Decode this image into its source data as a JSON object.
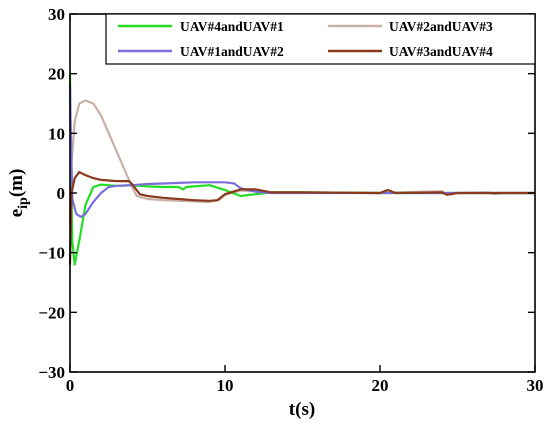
{
  "chart_data": {
    "type": "line",
    "xlabel": "t(s)",
    "ylabel_main": "e",
    "ylabel_sub": "ip",
    "ylabel_unit": "(m)",
    "xlim": [
      0,
      30
    ],
    "ylim": [
      -30,
      30
    ],
    "xticks": [
      "0",
      "10",
      "20",
      "30"
    ],
    "yticks": [
      "30",
      "20",
      "10",
      "0",
      "−10",
      "−20",
      "−30"
    ],
    "xtick_values": [
      0,
      10,
      20,
      30
    ],
    "ytick_values": [
      30,
      20,
      10,
      0,
      -10,
      -20,
      -30
    ],
    "grid": false,
    "legend_placement": "top-right",
    "series": [
      {
        "name": "UAV#4andUAV#1",
        "color": "#22dd22",
        "points": [
          [
            0,
            20
          ],
          [
            0.05,
            5
          ],
          [
            0.15,
            -8
          ],
          [
            0.3,
            -12
          ],
          [
            0.6,
            -8
          ],
          [
            1,
            -2
          ],
          [
            1.5,
            1
          ],
          [
            2,
            1.4
          ],
          [
            3,
            1.2
          ],
          [
            4,
            1.3
          ],
          [
            5,
            1.1
          ],
          [
            6,
            1.0
          ],
          [
            7,
            1.0
          ],
          [
            7.3,
            0.6
          ],
          [
            7.5,
            1.0
          ],
          [
            8,
            1.1
          ],
          [
            9,
            1.3
          ],
          [
            10,
            0.5
          ],
          [
            11,
            -0.5
          ],
          [
            12,
            -0.2
          ],
          [
            13,
            0.1
          ],
          [
            15,
            0.1
          ],
          [
            20,
            0
          ],
          [
            30,
            0
          ]
        ]
      },
      {
        "name": "UAV#1andUAV#2",
        "color": "#7b6fdd",
        "points": [
          [
            0,
            18
          ],
          [
            0.05,
            10
          ],
          [
            0.15,
            -1
          ],
          [
            0.4,
            -3.5
          ],
          [
            0.7,
            -4
          ],
          [
            1,
            -3.5
          ],
          [
            1.5,
            -1.5
          ],
          [
            2,
            0
          ],
          [
            2.5,
            1.0
          ],
          [
            3,
            1.2
          ],
          [
            4,
            1.3
          ],
          [
            5,
            1.5
          ],
          [
            6,
            1.6
          ],
          [
            7,
            1.7
          ],
          [
            8,
            1.8
          ],
          [
            9,
            1.8
          ],
          [
            10,
            1.8
          ],
          [
            10.6,
            1.6
          ],
          [
            11,
            0.8
          ],
          [
            12,
            0.2
          ],
          [
            13,
            0.0
          ],
          [
            15,
            0.0
          ],
          [
            20,
            0
          ],
          [
            30,
            0
          ]
        ]
      },
      {
        "name": "UAV#2andUAV#3",
        "color": "#c8b0a8",
        "points": [
          [
            0,
            -5
          ],
          [
            0.1,
            5
          ],
          [
            0.3,
            12
          ],
          [
            0.6,
            15
          ],
          [
            1,
            15.5
          ],
          [
            1.5,
            15
          ],
          [
            2,
            13
          ],
          [
            2.5,
            10
          ],
          [
            3,
            7
          ],
          [
            3.5,
            4
          ],
          [
            4,
            1
          ],
          [
            4.3,
            -0.5
          ],
          [
            5,
            -1
          ],
          [
            6,
            -1.2
          ],
          [
            7,
            -1.3
          ],
          [
            8,
            -1.4
          ],
          [
            9,
            -1.5
          ],
          [
            9.3,
            -1.3
          ],
          [
            9.6,
            -1.2
          ],
          [
            10,
            -0.3
          ],
          [
            11,
            0.4
          ],
          [
            12,
            0.3
          ],
          [
            13,
            0.1
          ],
          [
            15,
            0.1
          ],
          [
            20,
            0
          ],
          [
            24,
            0.3
          ],
          [
            24.3,
            -0.3
          ],
          [
            25,
            0
          ],
          [
            27,
            0.1
          ],
          [
            27.3,
            -0.2
          ],
          [
            28,
            0
          ],
          [
            30,
            0
          ]
        ]
      },
      {
        "name": "UAV#3andUAV#4",
        "color": "#8a3a1c",
        "points": [
          [
            0,
            -12
          ],
          [
            0.1,
            0
          ],
          [
            0.3,
            2.5
          ],
          [
            0.6,
            3.5
          ],
          [
            1,
            3
          ],
          [
            1.5,
            2.5
          ],
          [
            2,
            2.2
          ],
          [
            3,
            2.0
          ],
          [
            3.8,
            2.0
          ],
          [
            4,
            1.5
          ],
          [
            4.5,
            -0.2
          ],
          [
            5,
            -0.5
          ],
          [
            6,
            -0.8
          ],
          [
            7,
            -1.0
          ],
          [
            8,
            -1.2
          ],
          [
            9,
            -1.3
          ],
          [
            9.5,
            -1.2
          ],
          [
            10,
            -0.2
          ],
          [
            11,
            0.6
          ],
          [
            12,
            0.6
          ],
          [
            13,
            0.1
          ],
          [
            15,
            0.1
          ],
          [
            20,
            0
          ],
          [
            20.5,
            0.5
          ],
          [
            21,
            0
          ],
          [
            24,
            0.1
          ],
          [
            24.3,
            -0.3
          ],
          [
            25,
            0
          ],
          [
            30,
            0
          ]
        ]
      }
    ]
  }
}
